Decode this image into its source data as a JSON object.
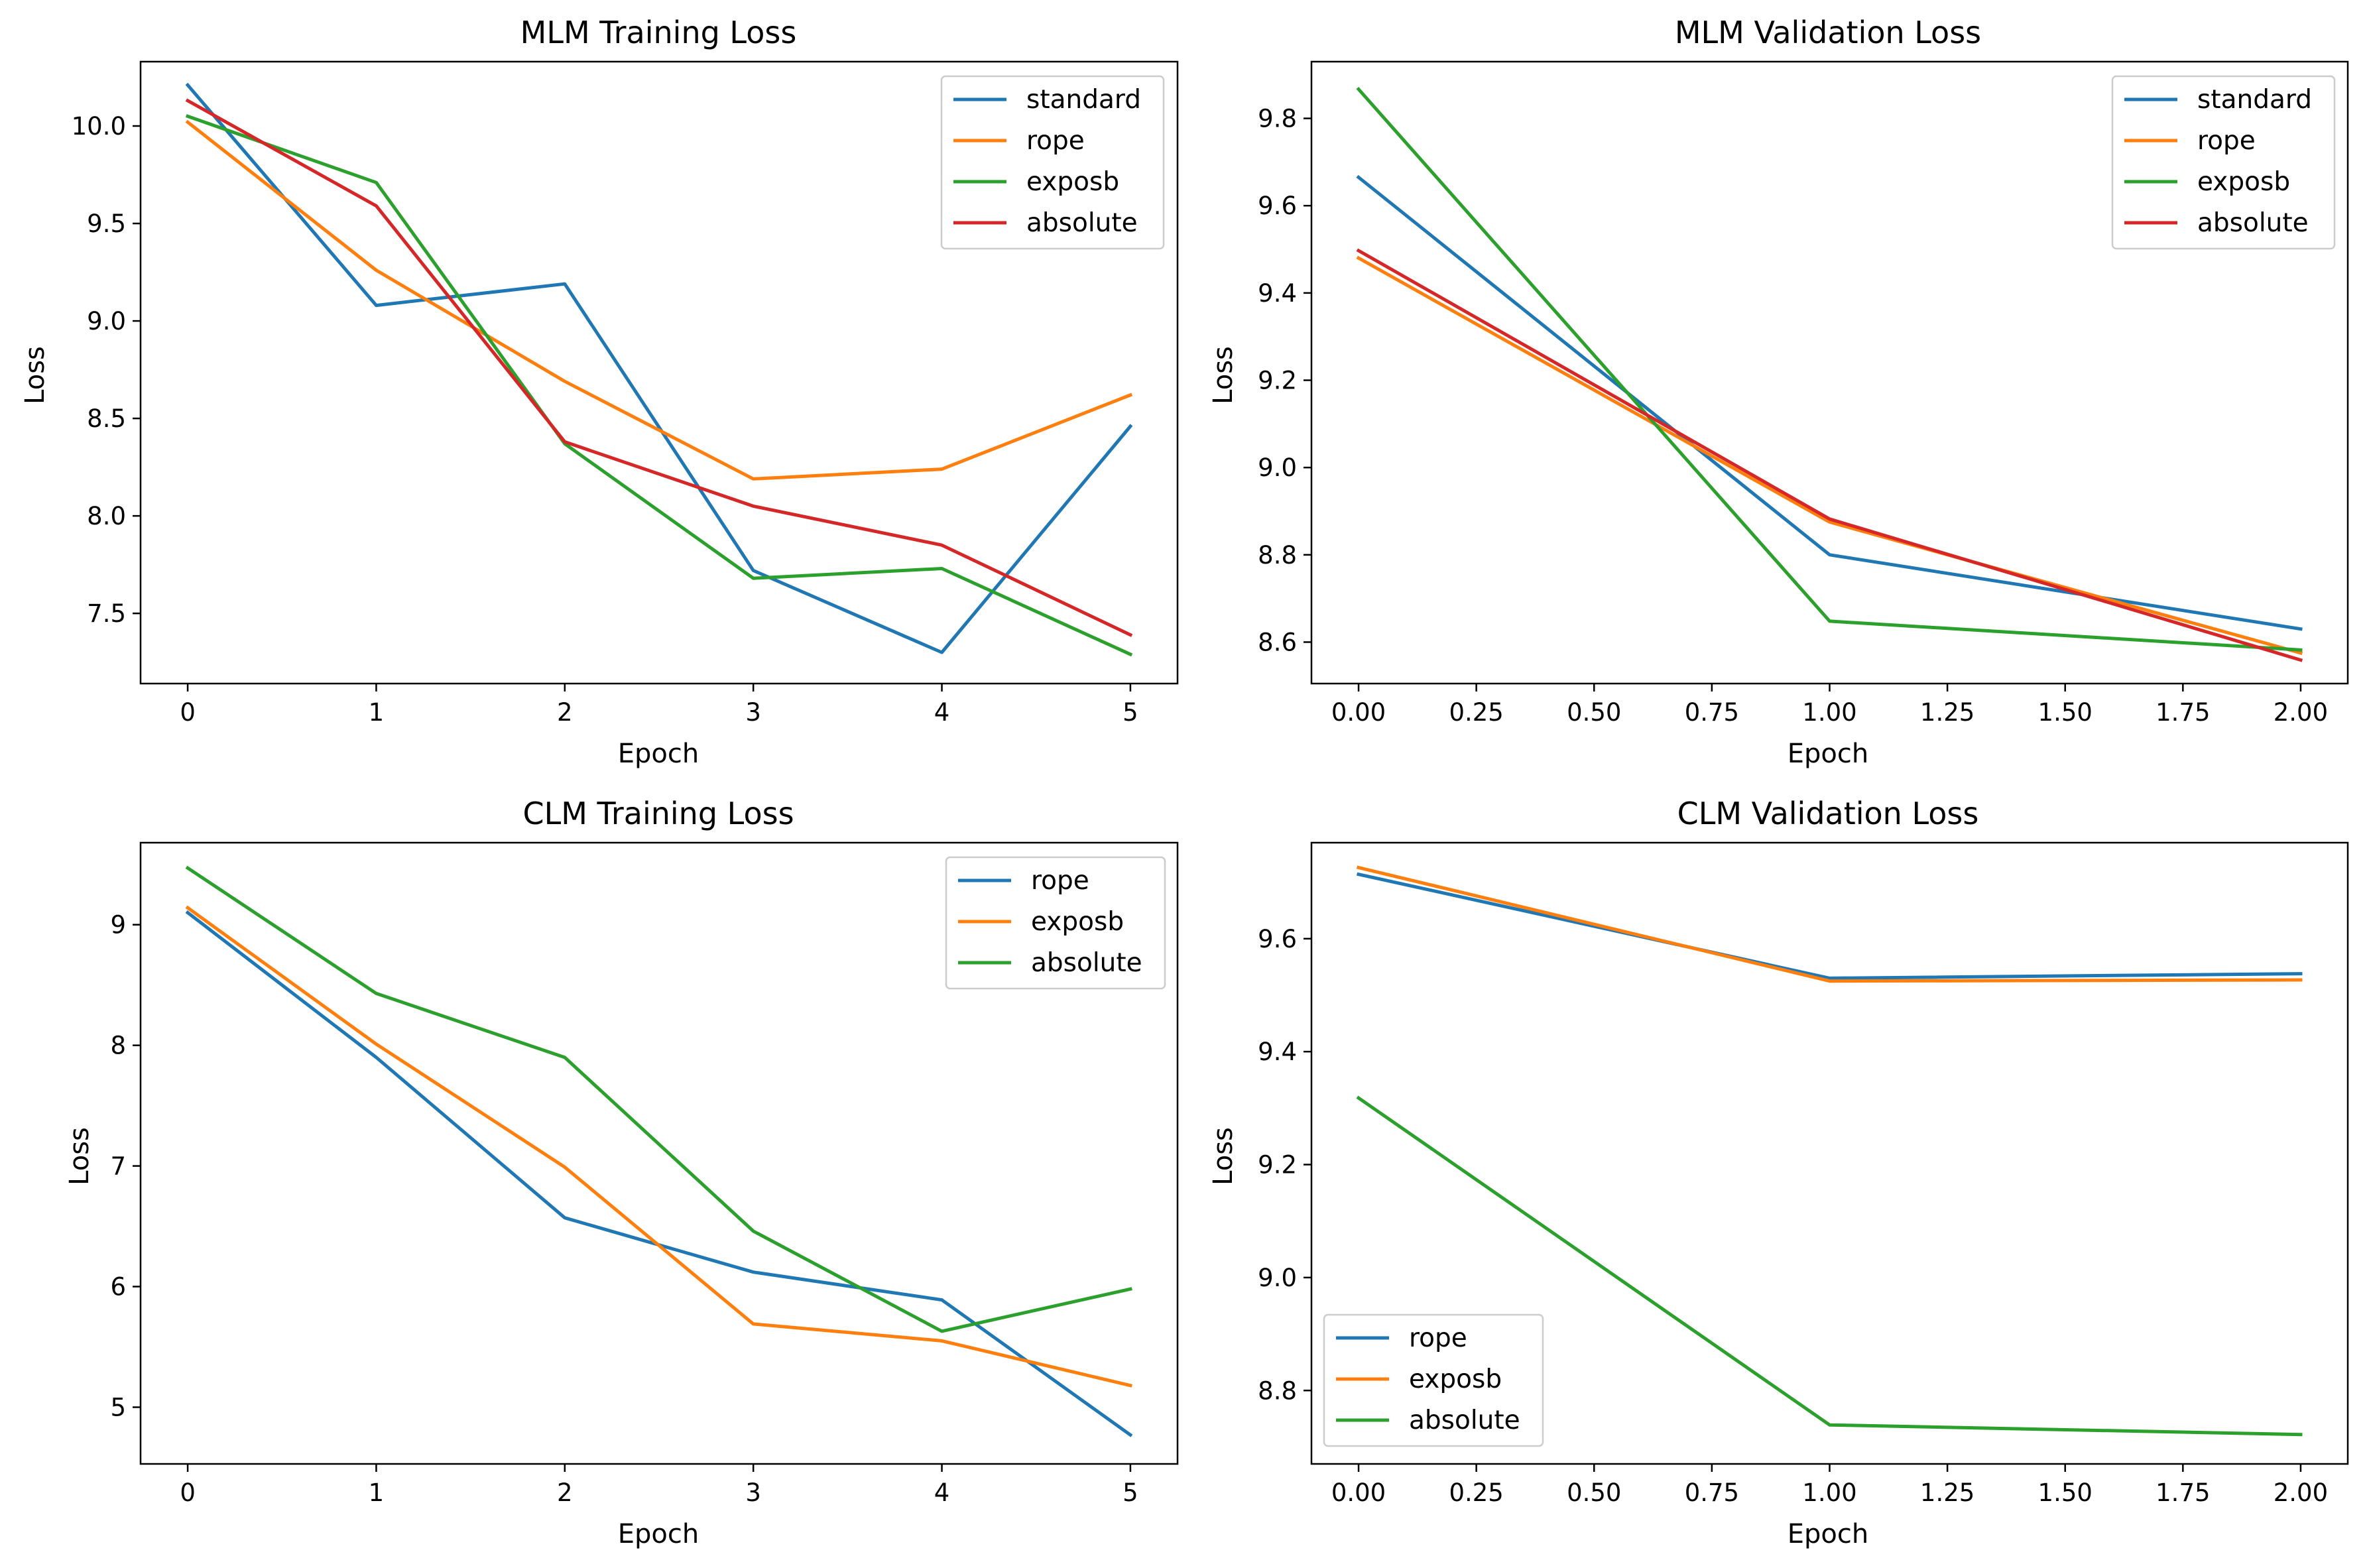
{
  "chart_data": [
    {
      "type": "line",
      "title": "MLM Training Loss",
      "xlabel": "Epoch",
      "ylabel": "Loss",
      "xlim": [
        -0.25,
        5.25
      ],
      "ylim": [
        7.14,
        10.33
      ],
      "xticks": [
        0,
        1,
        2,
        3,
        4,
        5
      ],
      "xtick_labels": [
        "0",
        "1",
        "2",
        "3",
        "4",
        "5"
      ],
      "yticks": [
        7.5,
        8.0,
        8.5,
        9.0,
        9.5,
        10.0
      ],
      "ytick_labels": [
        "7.5",
        "8.0",
        "8.5",
        "9.0",
        "9.5",
        "10.0"
      ],
      "grid": false,
      "legend": "upper right",
      "x": [
        0,
        1,
        2,
        3,
        4,
        5
      ],
      "series": [
        {
          "name": "standard",
          "color": "#1f77b4",
          "values": [
            10.21,
            9.08,
            9.19,
            7.72,
            7.3,
            8.46
          ]
        },
        {
          "name": "rope",
          "color": "#ff7f0e",
          "values": [
            10.02,
            9.26,
            8.69,
            8.19,
            8.24,
            8.62
          ]
        },
        {
          "name": "exposb",
          "color": "#2ca02c",
          "values": [
            10.05,
            9.71,
            8.37,
            7.68,
            7.73,
            7.29
          ]
        },
        {
          "name": "absolute",
          "color": "#d62728",
          "values": [
            10.13,
            9.59,
            8.38,
            8.05,
            7.85,
            7.39
          ]
        }
      ]
    },
    {
      "type": "line",
      "title": "MLM Validation Loss",
      "xlabel": "Epoch",
      "ylabel": "Loss",
      "xlim": [
        -0.1,
        2.1
      ],
      "ylim": [
        8.505,
        9.93
      ],
      "xticks": [
        0,
        0.25,
        0.5,
        0.75,
        1,
        1.25,
        1.5,
        1.75,
        2
      ],
      "xtick_labels": [
        "0.00",
        "0.25",
        "0.50",
        "0.75",
        "1.00",
        "1.25",
        "1.50",
        "1.75",
        "2.00"
      ],
      "yticks": [
        8.6,
        8.8,
        9.0,
        9.2,
        9.4,
        9.6,
        9.8
      ],
      "ytick_labels": [
        "8.6",
        "8.8",
        "9.0",
        "9.2",
        "9.4",
        "9.6",
        "9.8"
      ],
      "grid": false,
      "legend": "upper right",
      "x": [
        0,
        1,
        2
      ],
      "series": [
        {
          "name": "standard",
          "color": "#1f77b4",
          "values": [
            9.665,
            8.8,
            8.63
          ]
        },
        {
          "name": "rope",
          "color": "#ff7f0e",
          "values": [
            9.48,
            8.875,
            8.575
          ]
        },
        {
          "name": "exposb",
          "color": "#2ca02c",
          "values": [
            9.867,
            8.648,
            8.582
          ]
        },
        {
          "name": "absolute",
          "color": "#d62728",
          "values": [
            9.497,
            8.882,
            8.559
          ]
        }
      ]
    },
    {
      "type": "line",
      "title": "CLM Training Loss",
      "xlabel": "Epoch",
      "ylabel": "Loss",
      "xlim": [
        -0.25,
        5.25
      ],
      "ylim": [
        4.53,
        9.68
      ],
      "xticks": [
        0,
        1,
        2,
        3,
        4,
        5
      ],
      "xtick_labels": [
        "0",
        "1",
        "2",
        "3",
        "4",
        "5"
      ],
      "yticks": [
        5,
        6,
        7,
        8,
        9
      ],
      "ytick_labels": [
        "5",
        "6",
        "7",
        "8",
        "9"
      ],
      "grid": false,
      "legend": "upper right",
      "x": [
        0,
        1,
        2,
        3,
        4,
        5
      ],
      "series": [
        {
          "name": "rope",
          "color": "#1f77b4",
          "values": [
            9.1,
            7.9,
            6.57,
            6.12,
            5.89,
            4.77
          ]
        },
        {
          "name": "exposb",
          "color": "#ff7f0e",
          "values": [
            9.14,
            8.01,
            6.99,
            5.69,
            5.55,
            5.18
          ]
        },
        {
          "name": "absolute",
          "color": "#2ca02c",
          "values": [
            9.47,
            8.43,
            7.9,
            6.46,
            5.63,
            5.98
          ]
        }
      ]
    },
    {
      "type": "line",
      "title": "CLM Validation Loss",
      "xlabel": "Epoch",
      "ylabel": "Loss",
      "xlim": [
        -0.1,
        2.1
      ],
      "ylim": [
        8.67,
        9.77
      ],
      "xticks": [
        0,
        0.25,
        0.5,
        0.75,
        1,
        1.25,
        1.5,
        1.75,
        2
      ],
      "xtick_labels": [
        "0.00",
        "0.25",
        "0.50",
        "0.75",
        "1.00",
        "1.25",
        "1.50",
        "1.75",
        "2.00"
      ],
      "yticks": [
        8.8,
        9.0,
        9.2,
        9.4,
        9.6
      ],
      "ytick_labels": [
        "8.8",
        "9.0",
        "9.2",
        "9.4",
        "9.6"
      ],
      "grid": false,
      "legend": "lower left",
      "x": [
        0,
        1,
        2
      ],
      "series": [
        {
          "name": "rope",
          "color": "#1f77b4",
          "values": [
            9.714,
            9.53,
            9.538
          ]
        },
        {
          "name": "exposb",
          "color": "#ff7f0e",
          "values": [
            9.726,
            9.525,
            9.527
          ]
        },
        {
          "name": "absolute",
          "color": "#2ca02c",
          "values": [
            9.318,
            8.739,
            8.722
          ]
        }
      ]
    }
  ]
}
